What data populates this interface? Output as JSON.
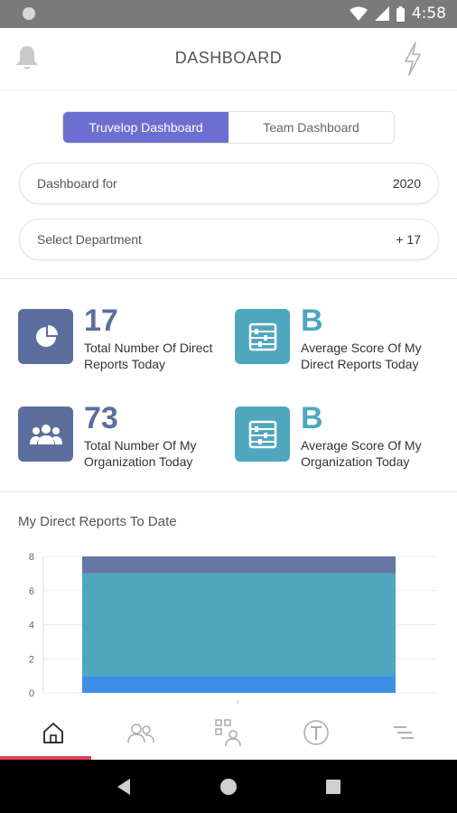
{
  "status_bar": {
    "time": "4:58"
  },
  "app_bar": {
    "title": "DASHBOARD"
  },
  "segments": {
    "active": "Truvelop Dashboard",
    "inactive": "Team Dashboard"
  },
  "filters": {
    "dashboard_for": {
      "label": "Dashboard for",
      "value": "2020"
    },
    "department": {
      "label": "Select Department",
      "value": "+ 17"
    }
  },
  "stats": [
    {
      "value": "17",
      "label": "Total Number Of Direct Reports Today",
      "icon": "pie-chart-icon",
      "color": "#5b6e9e"
    },
    {
      "value": "B",
      "label": "Average Score Of My Direct Reports Today",
      "icon": "abacus-icon",
      "color": "#4ea7bf"
    },
    {
      "value": "73",
      "label": "Total Number Of My Organization Today",
      "icon": "group-icon",
      "color": "#5b6e9e"
    },
    {
      "value": "B",
      "label": "Average Score Of My Organization Today",
      "icon": "abacus-icon",
      "color": "#4ea7bf"
    }
  ],
  "chart_title": "My Direct Reports To Date",
  "chart_data": {
    "type": "bar",
    "stacked": true,
    "categories": [
      ""
    ],
    "ylim": [
      0,
      8
    ],
    "yticks": [
      "0",
      "2",
      "4",
      "6",
      "8"
    ],
    "series": [
      {
        "values": [
          1
        ],
        "color": "#3d8fe6"
      },
      {
        "values": [
          6
        ],
        "color": "#4ea7bf"
      },
      {
        "values": [
          1
        ],
        "color": "#6478a3"
      }
    ],
    "grid": true
  },
  "bottom_nav": [
    "home-icon",
    "people-icon",
    "qr-person-icon",
    "truvelop-icon",
    "menu-lines-icon"
  ]
}
